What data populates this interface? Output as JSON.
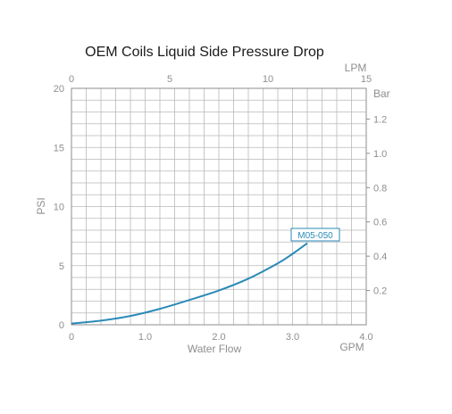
{
  "chart_data": {
    "type": "line",
    "title": "OEM Coils Liquid Side Pressure Drop",
    "xlabel": "Water Flow",
    "x_unit": "GPM",
    "ylabel": "PSI",
    "top_axis_unit": "LPM",
    "right_axis_unit": "Bar",
    "xlim": [
      0,
      4.0
    ],
    "ylim": [
      0,
      20
    ],
    "top_xlim": [
      0,
      15
    ],
    "right_ylim_bar": [
      0,
      1.379
    ],
    "x_ticks": [
      "0",
      "1.0",
      "2.0",
      "3.0",
      "4.0"
    ],
    "y_ticks": [
      "0",
      "5",
      "10",
      "15",
      "20"
    ],
    "top_ticks": [
      "0",
      "5",
      "10",
      "15"
    ],
    "right_ticks": [
      "0.2",
      "0.4",
      "0.6",
      "0.8",
      "1.0",
      "1.2"
    ],
    "grid": true,
    "series": [
      {
        "name": "M05-050",
        "x": [
          0,
          0.4,
          0.8,
          1.2,
          1.6,
          2.0,
          2.4,
          2.8,
          3.0,
          3.2
        ],
        "y": [
          0.1,
          0.35,
          0.75,
          1.35,
          2.1,
          2.9,
          3.9,
          5.2,
          6.0,
          6.9
        ]
      }
    ]
  }
}
